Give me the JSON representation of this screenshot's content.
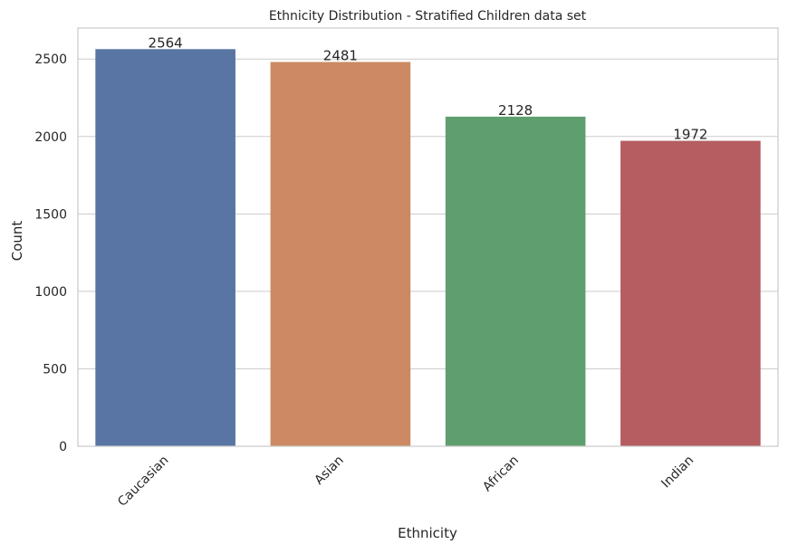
{
  "chart_data": {
    "type": "bar",
    "title": "Ethnicity Distribution - Stratified Children data set",
    "xlabel": "Ethnicity",
    "ylabel": "Count",
    "categories": [
      "Caucasian",
      "Asian",
      "African",
      "Indian"
    ],
    "values": [
      2564,
      2481,
      2128,
      1972
    ],
    "value_labels": [
      "2564",
      "2481",
      "2128",
      "1972"
    ],
    "colors": [
      "#5875a4",
      "#cc8963",
      "#5f9e6e",
      "#b55d60"
    ],
    "ylim": [
      0,
      2700
    ],
    "yticks": [
      0,
      500,
      1000,
      1500,
      2000,
      2500
    ],
    "ytick_labels": [
      "0",
      "500",
      "1000",
      "1500",
      "2000",
      "2500"
    ],
    "xtick_rotation": 45,
    "grid": "horizontal",
    "legend": "none"
  }
}
